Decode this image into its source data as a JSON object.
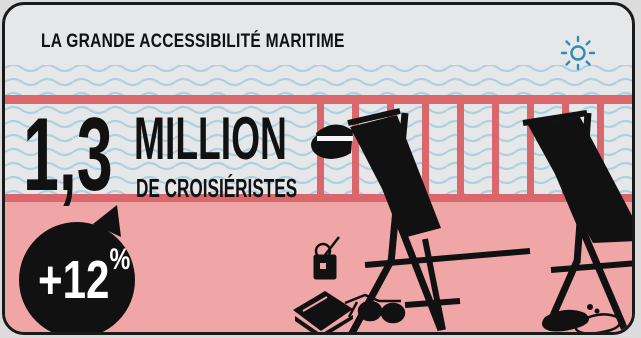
{
  "header": {
    "title": "LA GRANDE ACCESSIBILITÉ MARITIME"
  },
  "stat": {
    "value": "1,3",
    "unit": "MILLION",
    "label": "DE CROISIÉRISTES"
  },
  "badge": {
    "value": "+12",
    "symbol": "%"
  },
  "icons": [
    "sun-icon",
    "sun-hat-icon",
    "deck-chair-icon",
    "cocktail-icon",
    "book-icon",
    "sunglasses-icon",
    "footprint-icon"
  ],
  "colors": {
    "background": "#e6e7e9",
    "rail": "#d9676c",
    "deck": "#f0a6a6",
    "waves": "#a7cfe0",
    "ink": "#111111"
  }
}
